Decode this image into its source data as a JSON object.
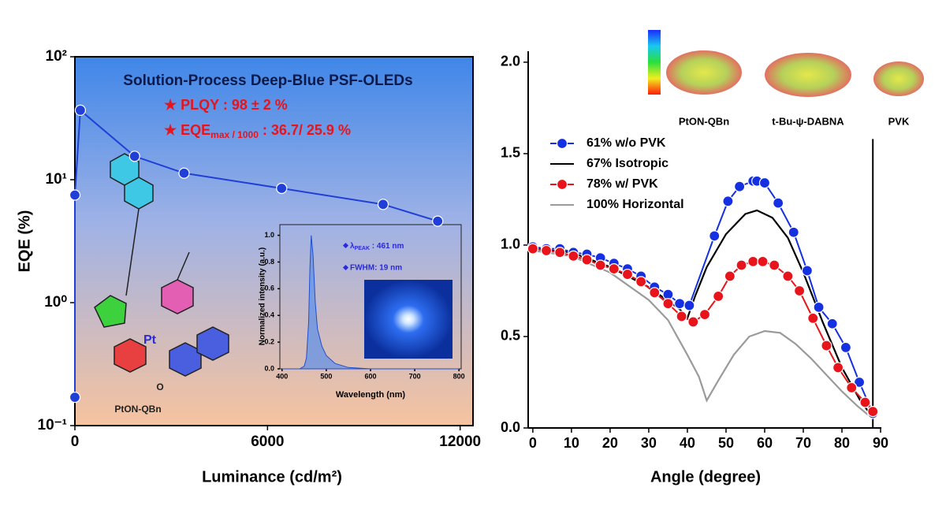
{
  "chart_data": [
    {
      "type": "line",
      "title": "Solution-Process Deep-Blue PSF-OLEDs",
      "annotations": [
        "★ PLQY : 98 ± 2 %"
      ],
      "annotation_eqe": {
        "text": "★ EQE",
        "sub": "max / 1000",
        "rest": " : 36.7/ 25.9 %"
      },
      "xlabel": "Luminance (cd/m²)",
      "ylabel": "EQE (%)",
      "x": [
        0,
        0,
        170,
        1860,
        3400,
        6440,
        9600,
        11300
      ],
      "values": [
        0.17,
        7.5,
        36.7,
        15.5,
        11.3,
        8.5,
        6.3,
        4.6
      ],
      "color": "#1f3fd6",
      "log_y": true,
      "xlim": [
        0,
        12400
      ],
      "xticks": [
        0,
        6000,
        12000
      ],
      "ylim": [
        0.1,
        100
      ],
      "yticks": [
        {
          "value": 0.1,
          "label": "10⁻¹"
        },
        {
          "value": 1,
          "label": "10⁰"
        },
        {
          "value": 10,
          "label": "10¹"
        },
        {
          "value": 100,
          "label": "10²"
        }
      ],
      "structure_labels": [
        "Pt",
        "O"
      ],
      "structure_name": "PtON-QBn"
    },
    {
      "type": "area",
      "xlabel": "Wavelength (nm)",
      "ylabel": "Normalized intensity (a.u.)",
      "legend_peak": {
        "text": "λ",
        "sub": "PEAK",
        "rest": " : 461 nm"
      },
      "legend_fwhm": "FWHM: 19 nm",
      "x": [
        400,
        440,
        450,
        455,
        460,
        463,
        466,
        470,
        475,
        480,
        490,
        500,
        520,
        550,
        600,
        700,
        800
      ],
      "values": [
        0,
        0,
        0.02,
        0.08,
        0.35,
        0.75,
        1.0,
        0.85,
        0.5,
        0.3,
        0.17,
        0.1,
        0.04,
        0.01,
        0,
        0,
        0
      ],
      "color": "#5b8fe8",
      "xlim": [
        395,
        805
      ],
      "xticks": [
        400,
        500,
        600,
        700,
        800
      ],
      "ylim": [
        0,
        1.08
      ],
      "yticks": [
        {
          "value": 0,
          "label": "0.0"
        },
        0.2,
        0.4,
        0.6,
        0.8,
        {
          "value": 1,
          "label": "1.0"
        }
      ]
    },
    {
      "type": "line",
      "xlabel": "Angle (degree)",
      "legend": "top-left",
      "xlim": [
        -1.2,
        90.2
      ],
      "xticks": [
        0,
        10,
        20,
        30,
        40,
        50,
        60,
        70,
        80,
        90
      ],
      "ylim": [
        0,
        2.06
      ],
      "yticks": [
        {
          "value": 0,
          "label": "0.0"
        },
        0.5,
        {
          "value": 1,
          "label": "1.0"
        },
        1.5,
        {
          "value": 2,
          "label": "2.0"
        }
      ],
      "series": [
        {
          "name": "61% w/o PVK",
          "color": "#1530e0",
          "marker": true,
          "x": [
            0,
            3.5,
            7,
            10.5,
            14,
            17.5,
            21,
            24.5,
            28,
            31.5,
            35,
            38,
            40.5,
            47,
            50.5,
            53.5,
            57,
            58,
            60,
            63.5,
            67.5,
            71,
            74,
            77.5,
            81,
            84.5,
            88
          ],
          "values": [
            0.99,
            0.98,
            0.98,
            0.96,
            0.95,
            0.93,
            0.9,
            0.87,
            0.83,
            0.77,
            0.73,
            0.68,
            0.67,
            1.05,
            1.24,
            1.32,
            1.35,
            1.35,
            1.34,
            1.23,
            1.07,
            0.86,
            0.66,
            0.57,
            0.44,
            0.25,
            0.08
          ]
        },
        {
          "name": "67% Isotropic",
          "color": "#000000",
          "marker": false,
          "x": [
            0,
            10,
            20,
            30,
            38,
            40,
            42,
            45,
            50,
            55,
            58,
            62,
            66,
            70,
            75,
            80,
            85,
            88
          ],
          "values": [
            0.98,
            0.96,
            0.88,
            0.77,
            0.65,
            0.6,
            0.72,
            0.88,
            1.06,
            1.17,
            1.19,
            1.15,
            1.04,
            0.85,
            0.58,
            0.33,
            0.14,
            0.06
          ]
        },
        {
          "name": "78% w/ PVK",
          "color": "#e8141c",
          "marker": true,
          "x": [
            0,
            3.5,
            7,
            10.5,
            14,
            17.5,
            21,
            24.5,
            28,
            31.5,
            35,
            38.5,
            41.5,
            44.5,
            48,
            51,
            54,
            57,
            59.5,
            62.5,
            66,
            69,
            72.5,
            76,
            79,
            82.5,
            86,
            88
          ],
          "values": [
            0.98,
            0.97,
            0.96,
            0.94,
            0.92,
            0.89,
            0.87,
            0.84,
            0.8,
            0.74,
            0.68,
            0.61,
            0.58,
            0.62,
            0.72,
            0.83,
            0.89,
            0.91,
            0.91,
            0.89,
            0.83,
            0.75,
            0.6,
            0.45,
            0.33,
            0.22,
            0.14,
            0.09
          ]
        },
        {
          "name": "100% Horizontal",
          "color": "#9a9a9a",
          "marker": false,
          "x": [
            0,
            10,
            20,
            30,
            35,
            40,
            43,
            45,
            48,
            52,
            56,
            60,
            64,
            68,
            72,
            76,
            80,
            84,
            88
          ],
          "values": [
            0.97,
            0.94,
            0.85,
            0.7,
            0.59,
            0.4,
            0.28,
            0.15,
            0.26,
            0.4,
            0.5,
            0.53,
            0.52,
            0.46,
            0.38,
            0.29,
            0.2,
            0.12,
            0.05
          ]
        }
      ],
      "reference_line": {
        "x": 88,
        "y": 1.58
      },
      "molecules": [
        "PtON-QBn",
        "t-Bu-ψ-DABNA",
        "PVK"
      ]
    }
  ]
}
